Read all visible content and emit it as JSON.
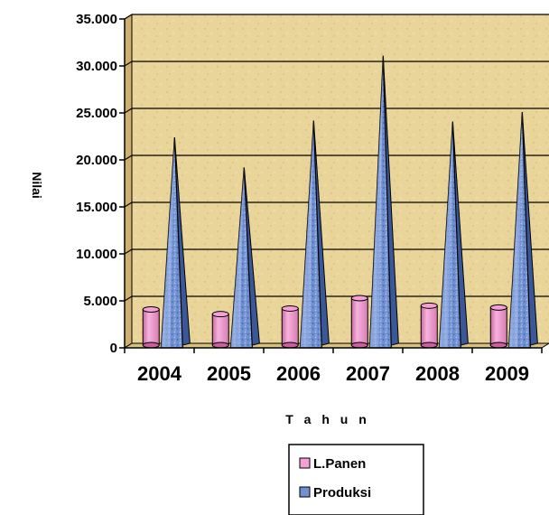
{
  "chart_data": {
    "type": "bar",
    "title": "",
    "xlabel": "T a h u n",
    "ylabel": "Nilai",
    "categories": [
      "2004",
      "2005",
      "2006",
      "2007",
      "2008",
      "2009"
    ],
    "series": [
      {
        "name": "L.Panen",
        "values": [
          3800,
          3300,
          3900,
          5000,
          4200,
          4000
        ],
        "shape": "cylinder"
      },
      {
        "name": "Produksi",
        "values": [
          22000,
          18800,
          23800,
          30700,
          23700,
          24700
        ],
        "shape": "pyramid"
      }
    ],
    "ylim": [
      0,
      35000
    ],
    "yticks": [
      "0",
      "5.000",
      "10.000",
      "15.000",
      "20.000",
      "25.000",
      "30.000",
      "35.000"
    ],
    "grid": true,
    "legend_position": "bottom",
    "colors": {
      "wall": "#e9d49a",
      "wall_dark": "#cfb070",
      "floor": "#d8c080",
      "lpanen": "#f4a0d4",
      "lpanen_dark": "#c9609c",
      "produksi": "#7090d0",
      "produksi_dark": "#3a5898"
    }
  }
}
